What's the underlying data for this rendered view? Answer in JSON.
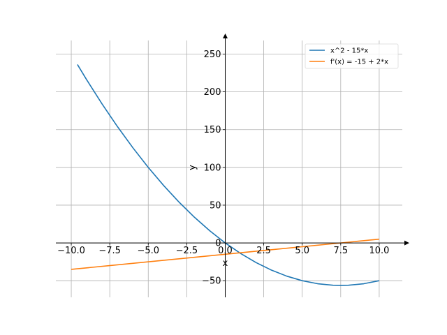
{
  "chart_data": {
    "type": "line",
    "title": "",
    "xlabel": "x",
    "ylabel": "y",
    "xlim": [
      -11.0,
      11.5
    ],
    "ylim": [
      -72,
      268
    ],
    "grid": true,
    "legend_position": "top-right",
    "x_ticks": [
      {
        "value": -10,
        "label": "−10.0"
      },
      {
        "value": -7.5,
        "label": "−7.5"
      },
      {
        "value": -5,
        "label": "−5.0"
      },
      {
        "value": -2.5,
        "label": "−2.5"
      },
      {
        "value": 0,
        "label": "0.0"
      },
      {
        "value": 2.5,
        "label": "2.5"
      },
      {
        "value": 5,
        "label": "5.0"
      },
      {
        "value": 7.5,
        "label": "7.5"
      },
      {
        "value": 10,
        "label": "10.0"
      }
    ],
    "y_ticks": [
      {
        "value": -50,
        "label": "−50"
      },
      {
        "value": 0,
        "label": "0"
      },
      {
        "value": 50,
        "label": "50"
      },
      {
        "value": 100,
        "label": "100"
      },
      {
        "value": 150,
        "label": "150"
      },
      {
        "value": 200,
        "label": "200"
      },
      {
        "value": 250,
        "label": "250"
      }
    ],
    "series": [
      {
        "name": "x^2 - 15*x",
        "color": "#1f77b4",
        "x": [
          -9.6,
          -9,
          -8,
          -7,
          -6,
          -5,
          -4,
          -3,
          -2,
          -1,
          0,
          1,
          2,
          3,
          4,
          5,
          6,
          7,
          7.5,
          8,
          9,
          10
        ],
        "y": [
          236.2,
          216,
          184,
          154,
          126,
          100,
          76,
          54,
          34,
          16,
          0,
          -14,
          -26,
          -36,
          -44,
          -50,
          -54,
          -56,
          -56.25,
          -56,
          -54,
          -50
        ]
      },
      {
        "name": "f'(x) = -15 + 2*x",
        "color": "#ff7f0e",
        "x": [
          -10,
          10
        ],
        "y": [
          -35,
          5
        ]
      }
    ]
  }
}
